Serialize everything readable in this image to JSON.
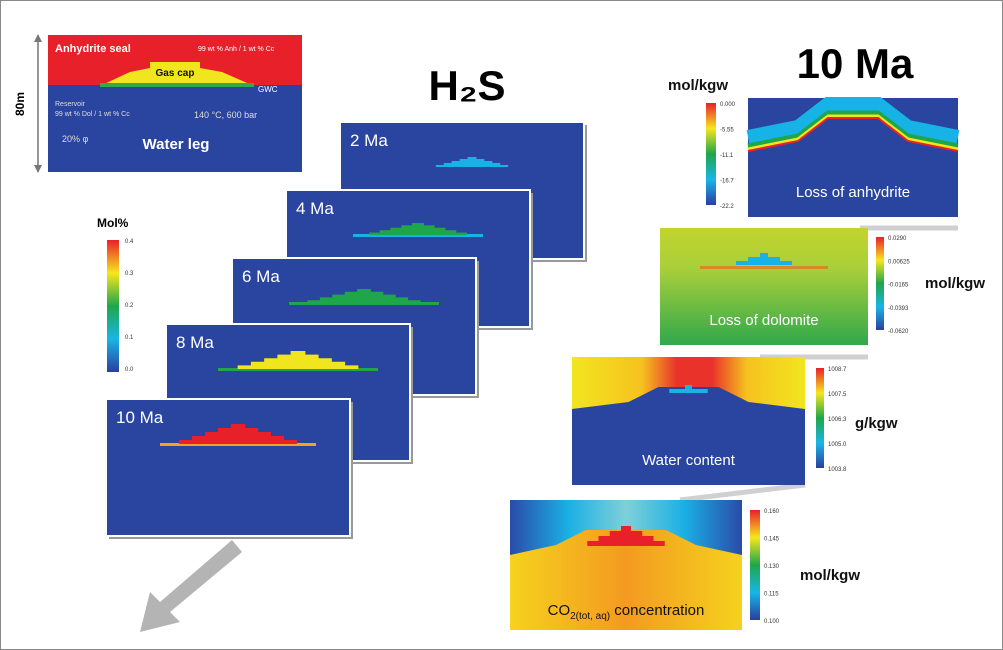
{
  "schematic": {
    "seal": "Anhydrite seal",
    "seal_composition": "99 wt % Anh / 1 wt % Cc",
    "gas_cap": "Gas cap",
    "contact": "GWC",
    "reservoir": "Reservoir",
    "reservoir_composition": "99 wt % Dol / 1 wt % Cc",
    "conditions": "140 °C, 600 bar",
    "porosity": "20% φ",
    "water_leg": "Water leg",
    "thickness": "80m"
  },
  "h2s_title": "H₂S",
  "h2s_panels": [
    "2 Ma",
    "4 Ma",
    "6 Ma",
    "8 Ma",
    "10 Ma"
  ],
  "h2s_colorbar": {
    "unit": "Mol%",
    "ticks": [
      "0.4",
      "0.3",
      "0.2",
      "0.1",
      "0.0"
    ]
  },
  "right_title": "10 Ma",
  "right_panels": [
    {
      "caption": "Loss of anhydrite",
      "unit": "mol/kgw",
      "ticks": [
        "0.000",
        "-5.55",
        "-11.1",
        "-16.7",
        "-22.2"
      ]
    },
    {
      "caption": "Loss of dolomite",
      "unit": "mol/kgw",
      "ticks": [
        "0.0290",
        "0.00625",
        "-0.0165",
        "-0.0393",
        "-0.0620"
      ]
    },
    {
      "caption": "Water content",
      "unit": "g/kgw",
      "ticks": [
        "1008.7",
        "1007.5",
        "1006.3",
        "1005.0",
        "1003.8"
      ]
    },
    {
      "caption": {
        "main": "CO",
        "sub": "2(tot, aq)",
        "tail": " concentration"
      },
      "unit": "mol/kgw",
      "ticks": [
        "0.160",
        "0.145",
        "0.130",
        "0.115",
        "0.100"
      ]
    }
  ]
}
